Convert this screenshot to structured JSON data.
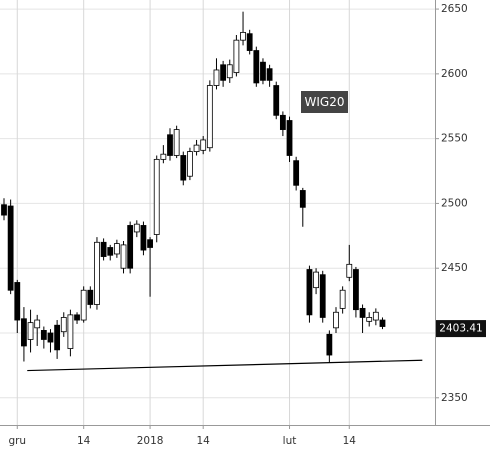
{
  "chart_data": {
    "type": "candlestick",
    "annotation": "WIG20",
    "last_price": 2403.41,
    "categories": [
      null,
      null,
      "gru",
      null,
      null,
      null,
      null,
      null,
      null,
      null,
      null,
      null,
      "14",
      null,
      null,
      null,
      null,
      null,
      null,
      null,
      null,
      null,
      "2018",
      null,
      null,
      null,
      null,
      null,
      null,
      null,
      "14",
      null,
      null,
      null,
      null,
      null,
      null,
      null,
      null,
      null,
      null,
      null,
      null,
      "lut",
      null,
      null,
      null,
      null,
      null,
      null,
      null,
      null,
      "14",
      null,
      null,
      null,
      null,
      null
    ],
    "series": [
      {
        "open": [
          2499,
          2498,
          2439,
          2411,
          2395,
          2404,
          2402,
          2400,
          2406,
          2401,
          2388,
          2414,
          2410,
          2433,
          2422,
          2470,
          2466,
          2461,
          2450,
          2483,
          2478,
          2483,
          2472,
          2476,
          2534,
          2553,
          2537,
          2537,
          2521,
          2540,
          2541,
          2543,
          2591,
          2607,
          2597,
          2601,
          2626,
          2631,
          2618,
          2609,
          2604,
          2591,
          2568,
          2564,
          2533,
          2510,
          2449,
          2435,
          2445,
          2399,
          2404,
          2419,
          2443,
          2449,
          2419,
          2409,
          2410,
          2410
        ],
        "high": [
          2504,
          2503,
          2441,
          2420,
          2418,
          2414,
          2405,
          2403,
          2410,
          2416,
          2418,
          2416,
          2436,
          2436,
          2474,
          2473,
          2468,
          2472,
          2471,
          2486,
          2487,
          2486,
          2474,
          2537,
          2545,
          2558,
          2560,
          2540,
          2543,
          2549,
          2552,
          2595,
          2612,
          2610,
          2611,
          2630,
          2648,
          2634,
          2621,
          2612,
          2607,
          2594,
          2571,
          2567,
          2536,
          2512,
          2452,
          2450,
          2448,
          2402,
          2420,
          2436,
          2468,
          2451,
          2422,
          2416,
          2419,
          2412
        ],
        "low": [
          2487,
          2430,
          2400,
          2378,
          2385,
          2390,
          2388,
          2385,
          2380,
          2397,
          2382,
          2407,
          2408,
          2419,
          2418,
          2456,
          2456,
          2458,
          2446,
          2446,
          2474,
          2460,
          2428,
          2470,
          2531,
          2533,
          2535,
          2514,
          2518,
          2537,
          2538,
          2540,
          2588,
          2590,
          2593,
          2598,
          2622,
          2615,
          2590,
          2592,
          2590,
          2565,
          2552,
          2532,
          2510,
          2482,
          2408,
          2430,
          2408,
          2377,
          2400,
          2415,
          2440,
          2412,
          2400,
          2405,
          2406,
          2403
        ],
        "close": [
          2491,
          2433,
          2410,
          2390,
          2408,
          2410,
          2395,
          2393,
          2387,
          2412,
          2414,
          2410,
          2433,
          2422,
          2470,
          2459,
          2460,
          2469,
          2468,
          2450,
          2484,
          2464,
          2466,
          2534,
          2538,
          2537,
          2557,
          2518,
          2540,
          2545,
          2549,
          2591,
          2603,
          2595,
          2607,
          2626,
          2632,
          2618,
          2593,
          2595,
          2595,
          2568,
          2557,
          2537,
          2514,
          2497,
          2414,
          2447,
          2412,
          2383,
          2416,
          2433,
          2453,
          2418,
          2412,
          2412,
          2416,
          2405
        ]
      }
    ],
    "trendline": {
      "x": [
        3.5,
        63
      ],
      "y": [
        2371,
        2379
      ]
    },
    "ylim": [
      2329,
      2657
    ],
    "yticks": [
      2350,
      2400,
      2450,
      2500,
      2550,
      2600,
      2650
    ],
    "grid": true
  }
}
